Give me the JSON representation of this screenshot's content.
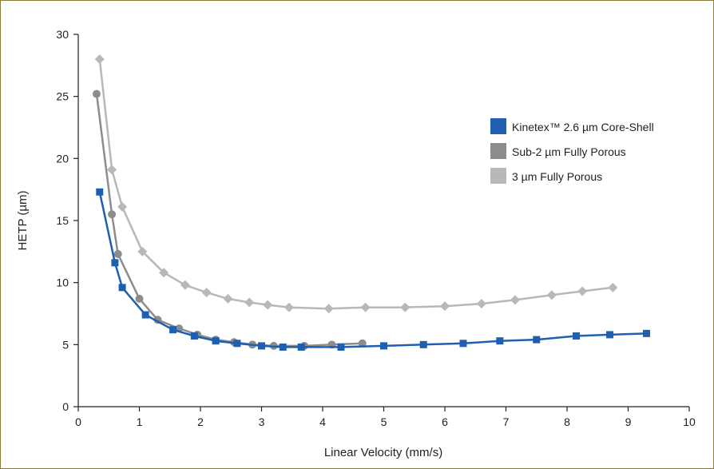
{
  "chart_data": {
    "type": "line",
    "title": "",
    "xlabel": "Linear Velocity (mm/s)",
    "ylabel": "HETP (µm)",
    "xlim": [
      0,
      10
    ],
    "ylim": [
      0,
      30
    ],
    "x_ticks": [
      0,
      1,
      2,
      3,
      4,
      5,
      6,
      7,
      8,
      9,
      10
    ],
    "y_ticks": [
      0,
      5,
      10,
      15,
      20,
      25,
      30
    ],
    "grid": false,
    "legend_position": "right",
    "series": [
      {
        "name": "Kinetex™ 2.6 µm Core-Shell",
        "color": "#1f5fb0",
        "marker": "square",
        "points": [
          [
            0.35,
            17.3
          ],
          [
            0.6,
            11.6
          ],
          [
            0.72,
            9.6
          ],
          [
            1.1,
            7.4
          ],
          [
            1.55,
            6.2
          ],
          [
            1.9,
            5.7
          ],
          [
            2.25,
            5.3
          ],
          [
            2.6,
            5.1
          ],
          [
            3.0,
            4.9
          ],
          [
            3.35,
            4.8
          ],
          [
            3.65,
            4.8
          ],
          [
            4.3,
            4.8
          ],
          [
            5.0,
            4.9
          ],
          [
            5.65,
            5.0
          ],
          [
            6.3,
            5.1
          ],
          [
            6.9,
            5.3
          ],
          [
            7.5,
            5.4
          ],
          [
            8.15,
            5.7
          ],
          [
            8.7,
            5.8
          ],
          [
            9.3,
            5.9
          ]
        ]
      },
      {
        "name": "Sub-2 µm Fully Porous",
        "color": "#8c8c8c",
        "marker": "circle",
        "points": [
          [
            0.3,
            25.2
          ],
          [
            0.55,
            15.5
          ],
          [
            0.65,
            12.3
          ],
          [
            1.0,
            8.7
          ],
          [
            1.3,
            7.0
          ],
          [
            1.65,
            6.3
          ],
          [
            1.95,
            5.8
          ],
          [
            2.25,
            5.4
          ],
          [
            2.55,
            5.2
          ],
          [
            2.85,
            5.0
          ],
          [
            3.2,
            4.9
          ],
          [
            3.7,
            4.9
          ],
          [
            4.15,
            5.0
          ],
          [
            4.65,
            5.1
          ]
        ]
      },
      {
        "name": "3 µm Fully Porous",
        "color": "#b8b8b8",
        "marker": "diamond",
        "points": [
          [
            0.35,
            28.0
          ],
          [
            0.55,
            19.1
          ],
          [
            0.72,
            16.1
          ],
          [
            1.05,
            12.5
          ],
          [
            1.4,
            10.8
          ],
          [
            1.75,
            9.8
          ],
          [
            2.1,
            9.2
          ],
          [
            2.45,
            8.7
          ],
          [
            2.8,
            8.4
          ],
          [
            3.1,
            8.2
          ],
          [
            3.45,
            8.0
          ],
          [
            4.1,
            7.9
          ],
          [
            4.7,
            8.0
          ],
          [
            5.35,
            8.0
          ],
          [
            6.0,
            8.1
          ],
          [
            6.6,
            8.3
          ],
          [
            7.15,
            8.6
          ],
          [
            7.75,
            9.0
          ],
          [
            8.25,
            9.3
          ],
          [
            8.75,
            9.6
          ]
        ]
      }
    ]
  }
}
